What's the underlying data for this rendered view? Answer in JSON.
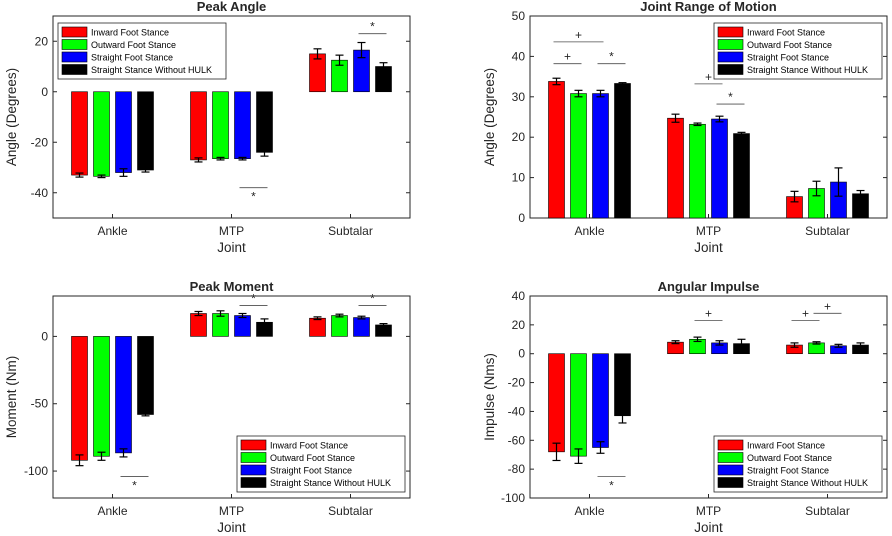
{
  "colors": {
    "series": [
      "#ff0000",
      "#00ff00",
      "#0000ff",
      "#000000"
    ],
    "axis": "#262626"
  },
  "chart_data": [
    {
      "type": "bar",
      "title": "Peak Angle",
      "xlabel": "Joint",
      "ylabel": "Angle (Degrees)",
      "categories": [
        "Ankle",
        "MTP",
        "Subtalar"
      ],
      "ylim": [
        -50,
        30
      ],
      "yticks": [
        -40,
        -20,
        0,
        20
      ],
      "legend_position": "top-left",
      "series": [
        {
          "name": "Inward Foot Stance",
          "values": [
            -33,
            -27,
            15
          ],
          "errors": [
            0.8,
            0.8,
            2.0
          ]
        },
        {
          "name": "Outward Foot Stance",
          "values": [
            -33.5,
            -26.5,
            12.5
          ],
          "errors": [
            0.5,
            0.5,
            2.0
          ]
        },
        {
          "name": "Straight Foot Stance",
          "values": [
            -32,
            -26.5,
            16.5
          ],
          "errors": [
            1.5,
            0.5,
            3.0
          ]
        },
        {
          "name": "Straight Stance Without HULK",
          "values": [
            -31,
            -24,
            10
          ],
          "errors": [
            0.8,
            1.5,
            1.5
          ]
        }
      ],
      "annotations": [
        {
          "symbol": "*",
          "group": 1,
          "from": 2,
          "to": 3,
          "level": -38
        },
        {
          "symbol": "*",
          "group": 2,
          "from": 2,
          "to": 3,
          "level": 23
        }
      ]
    },
    {
      "type": "bar",
      "title": "Joint Range of Motion",
      "xlabel": "Joint",
      "ylabel": "Angle (Degrees)",
      "categories": [
        "Ankle",
        "MTP",
        "Subtalar"
      ],
      "ylim": [
        0,
        50
      ],
      "yticks": [
        0,
        10,
        20,
        30,
        40,
        50
      ],
      "legend_position": "top-right",
      "series": [
        {
          "name": "Inward Foot Stance",
          "values": [
            33.8,
            24.7,
            5.3
          ],
          "errors": [
            0.8,
            1.0,
            1.3
          ]
        },
        {
          "name": "Outward Foot Stance",
          "values": [
            30.8,
            23.2,
            7.3
          ],
          "errors": [
            0.8,
            0.3,
            1.8
          ]
        },
        {
          "name": "Straight Foot Stance",
          "values": [
            30.8,
            24.5,
            8.9
          ],
          "errors": [
            0.8,
            0.7,
            3.5
          ]
        },
        {
          "name": "Straight Stance Without HULK",
          "values": [
            33.3,
            20.9,
            6.0
          ],
          "errors": [
            0.2,
            0.3,
            0.8
          ]
        }
      ],
      "annotations": [
        {
          "symbol": "+",
          "group": 0,
          "from": 0,
          "to": 1,
          "level": 38.2
        },
        {
          "symbol": "+",
          "group": 0,
          "from": 0,
          "to": 2,
          "level": 43.6
        },
        {
          "symbol": "*",
          "group": 0,
          "from": 2,
          "to": 3,
          "level": 38.2
        },
        {
          "symbol": "+",
          "group": 1,
          "from": 1,
          "to": 2,
          "level": 33.2
        },
        {
          "symbol": "*",
          "group": 1,
          "from": 2,
          "to": 3,
          "level": 28.2
        }
      ]
    },
    {
      "type": "bar",
      "title": "Peak Moment",
      "xlabel": "Joint",
      "ylabel": "Moment (Nm)",
      "categories": [
        "Ankle",
        "MTP",
        "Subtalar"
      ],
      "ylim": [
        -120,
        30
      ],
      "yticks": [
        -100,
        -50,
        0
      ],
      "legend_position": "bottom-right",
      "series": [
        {
          "name": "Inward Foot Stance",
          "values": [
            -92,
            17,
            13.5
          ],
          "errors": [
            4,
            1.5,
            1
          ]
        },
        {
          "name": "Outward Foot Stance",
          "values": [
            -89,
            17,
            15.5
          ],
          "errors": [
            3,
            2,
            1
          ]
        },
        {
          "name": "Straight Foot Stance",
          "values": [
            -86.5,
            15.5,
            14
          ],
          "errors": [
            3,
            1.5,
            1
          ]
        },
        {
          "name": "Straight Stance Without HULK",
          "values": [
            -58,
            10.5,
            8.5
          ],
          "errors": [
            1,
            2.5,
            1
          ]
        }
      ],
      "annotations": [
        {
          "symbol": "*",
          "group": 0,
          "from": 2,
          "to": 3,
          "level": -104
        },
        {
          "symbol": "*",
          "group": 1,
          "from": 2,
          "to": 3,
          "level": 23
        },
        {
          "symbol": "*",
          "group": 2,
          "from": 2,
          "to": 3,
          "level": 23
        }
      ]
    },
    {
      "type": "bar",
      "title": "Angular Impulse",
      "xlabel": "Joint",
      "ylabel": "Impulse (Nms)",
      "categories": [
        "Ankle",
        "MTP",
        "Subtalar"
      ],
      "ylim": [
        -100,
        40
      ],
      "yticks": [
        -100,
        -80,
        -60,
        -40,
        -20,
        0,
        20,
        40
      ],
      "legend_position": "bottom-right",
      "series": [
        {
          "name": "Inward Foot Stance",
          "values": [
            -68,
            8,
            6
          ],
          "errors": [
            6,
            1,
            1.5
          ]
        },
        {
          "name": "Outward Foot Stance",
          "values": [
            -71,
            10,
            7.5
          ],
          "errors": [
            5,
            1.5,
            0.8
          ]
        },
        {
          "name": "Straight Foot Stance",
          "values": [
            -65,
            7.5,
            5.5
          ],
          "errors": [
            4,
            1.5,
            1
          ]
        },
        {
          "name": "Straight Stance Without HULK",
          "values": [
            -43,
            7,
            6
          ],
          "errors": [
            5,
            3,
            1.5
          ]
        }
      ],
      "annotations": [
        {
          "symbol": "*",
          "group": 0,
          "from": 2,
          "to": 3,
          "level": -85
        },
        {
          "symbol": "+",
          "group": 1,
          "from": 1,
          "to": 2,
          "level": 23
        },
        {
          "symbol": "+",
          "group": 2,
          "from": 0,
          "to": 1,
          "level": 23
        },
        {
          "symbol": "+",
          "group": 2,
          "from": 1,
          "to": 2,
          "level": 28
        }
      ]
    }
  ]
}
